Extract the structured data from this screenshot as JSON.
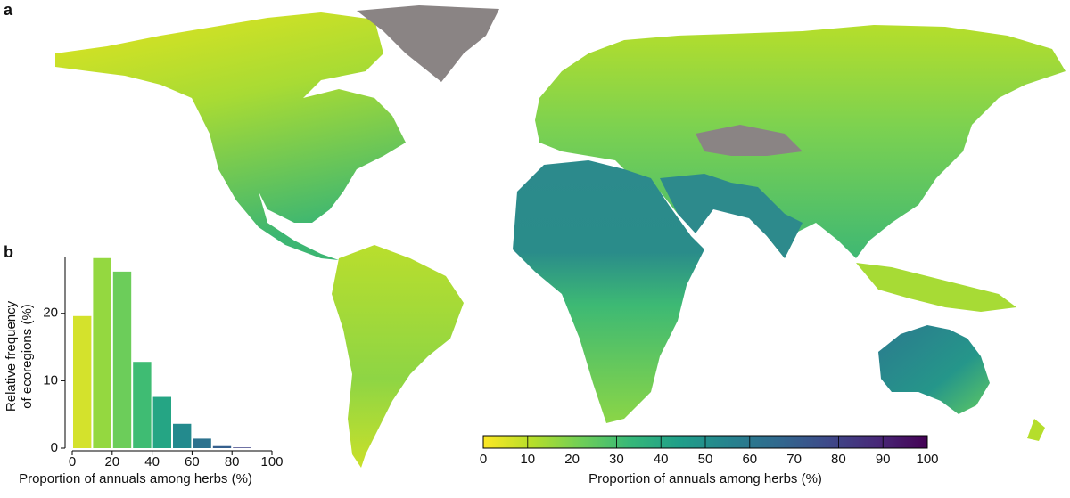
{
  "chart_data": [
    {
      "type": "map",
      "panel_label": "a",
      "colorbar": {
        "label": "Proportion of annuals among herbs (%)",
        "lim": [
          0,
          100
        ],
        "ticks": [
          0,
          10,
          20,
          30,
          40,
          50,
          60,
          70,
          80,
          90,
          100
        ],
        "colors": [
          "#fde725",
          "#b5de2b",
          "#6ece58",
          "#35b779",
          "#1f9e89",
          "#26828e",
          "#31688e",
          "#3e4989",
          "#482878",
          "#440154"
        ]
      }
    },
    {
      "type": "histogram",
      "panel_label": "b",
      "bins": [
        0,
        10,
        20,
        30,
        40,
        50,
        60,
        70,
        80,
        90,
        100
      ],
      "values": [
        19.6,
        28.2,
        26.2,
        12.8,
        7.6,
        3.6,
        1.4,
        0.3,
        0.1,
        0
      ],
      "colors": [
        "#d4e22c",
        "#94d840",
        "#6ccd5a",
        "#3fbc73",
        "#25a584",
        "#238a8d",
        "#2c728e",
        "#355f8d",
        "#414487",
        "#482475"
      ],
      "xlim": [
        0,
        100
      ],
      "ylim": [
        0,
        28.3
      ],
      "xticks": [
        0,
        20,
        40,
        60,
        80,
        100
      ],
      "yticks": [
        0,
        10,
        20
      ],
      "xlabel": "Proportion of annuals among herbs (%)",
      "ylabel": [
        "Relative frequency",
        "of ecoregions (%)"
      ]
    }
  ]
}
